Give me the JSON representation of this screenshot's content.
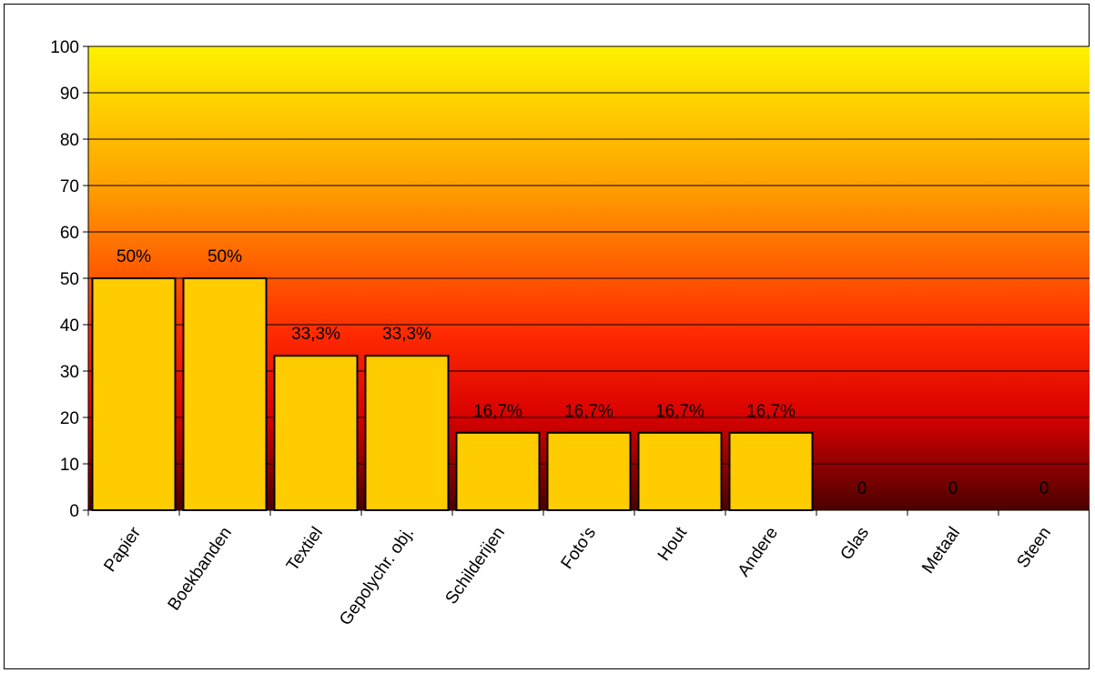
{
  "chart_data": {
    "type": "bar",
    "categories": [
      "Papier",
      "Boekbanden",
      "Textiel",
      "Gepolychr. obj.",
      "Schilderijen",
      "Foto's",
      "Hout",
      "Andere",
      "Glas",
      "Metaal",
      "Steen"
    ],
    "values": [
      50,
      50,
      33.3,
      33.3,
      16.7,
      16.7,
      16.7,
      16.7,
      0,
      0,
      0
    ],
    "data_labels": [
      "50%",
      "50%",
      "33,3%",
      "33,3%",
      "16,7%",
      "16,7%",
      "16,7%",
      "16,7%",
      "0",
      "0",
      "0"
    ],
    "y_ticks": [
      "0",
      "10",
      "20",
      "30",
      "40",
      "50",
      "60",
      "70",
      "80",
      "90",
      "100"
    ],
    "ylim": [
      0,
      100
    ],
    "title": "",
    "xlabel": "",
    "ylabel": "",
    "grid": true,
    "legend": "none",
    "colors": {
      "bar_fill": "#FFCC00",
      "bar_stroke": "#000000",
      "plot_gradient_top": "#FFF200",
      "plot_gradient_mid_upper": "#FFA000",
      "plot_gradient_mid": "#FF2A00",
      "plot_gradient_low": "#D80000",
      "plot_gradient_bottom": "#4A0000",
      "gridline": "#000000"
    }
  }
}
